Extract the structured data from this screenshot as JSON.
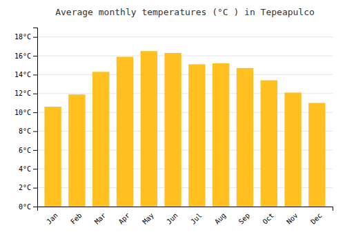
{
  "chart_data": {
    "type": "bar",
    "title": "Average monthly temperatures (°C ) in Tepeapulco",
    "categories": [
      "Jan",
      "Feb",
      "Mar",
      "Apr",
      "May",
      "Jun",
      "Jul",
      "Aug",
      "Sep",
      "Oct",
      "Nov",
      "Dec"
    ],
    "values": [
      10.6,
      11.9,
      14.3,
      15.9,
      16.5,
      16.3,
      15.1,
      15.2,
      14.7,
      13.4,
      12.1,
      11.0
    ],
    "color": "#FFC020",
    "ylim": [
      0,
      19
    ],
    "yticks": [
      {
        "value": 0,
        "label": "0°C"
      },
      {
        "value": 2,
        "label": "2°C"
      },
      {
        "value": 4,
        "label": "4°C"
      },
      {
        "value": 6,
        "label": "6°C"
      },
      {
        "value": 8,
        "label": "8°C"
      },
      {
        "value": 10,
        "label": "10°C"
      },
      {
        "value": 12,
        "label": "12°C"
      },
      {
        "value": 14,
        "label": "14°C"
      },
      {
        "value": 16,
        "label": "16°C"
      },
      {
        "value": 18,
        "label": "18°C"
      }
    ],
    "grid": true
  }
}
